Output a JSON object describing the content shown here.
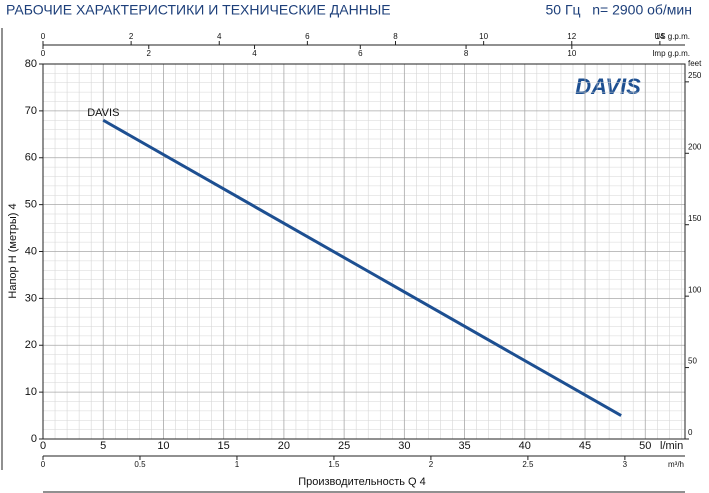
{
  "chart_data": {
    "type": "line",
    "title": "РАБОЧИЕ ХАРАКТЕРИСТИКИ И ТЕХНИЧЕСКИЕ ДАННЫЕ",
    "subtitle": "50 Гц   n= 2900 об/мин",
    "logo": "DAVIS",
    "y_label": "Напор Н (метры) 4",
    "x_label": "Производительность Q 4",
    "x_unit": "l/min",
    "y2_label": "feet",
    "x": [
      5,
      48
    ],
    "series": [
      {
        "name": "DAVIS",
        "color": "#1d4f91",
        "values": [
          68,
          5
        ]
      }
    ],
    "xlim": [
      0,
      53.3
    ],
    "xticks": [
      0,
      5,
      10,
      15,
      20,
      25,
      30,
      35,
      40,
      45,
      50
    ],
    "ylim": [
      0,
      80
    ],
    "yticks": [
      0,
      10,
      20,
      30,
      40,
      50,
      60,
      70,
      80
    ],
    "y2lim": [
      0,
      262.5
    ],
    "y2ticks": [
      0,
      50,
      100,
      150,
      200,
      250
    ],
    "grid": true,
    "top_axes": [
      {
        "label": "US g.p.m.",
        "lim": [
          0,
          14.57
        ],
        "ticks": [
          0,
          2,
          4,
          6,
          8,
          10,
          12,
          14
        ]
      },
      {
        "label": "Imp g.p.m.",
        "lim": [
          0,
          12.14
        ],
        "ticks": [
          0,
          2,
          4,
          6,
          8,
          10
        ]
      }
    ],
    "bottom_axis2": {
      "label": "m³/h",
      "lim": [
        0,
        3.31
      ],
      "ticks": [
        0,
        0.5,
        1,
        1.5,
        2,
        2.5,
        3
      ]
    }
  }
}
